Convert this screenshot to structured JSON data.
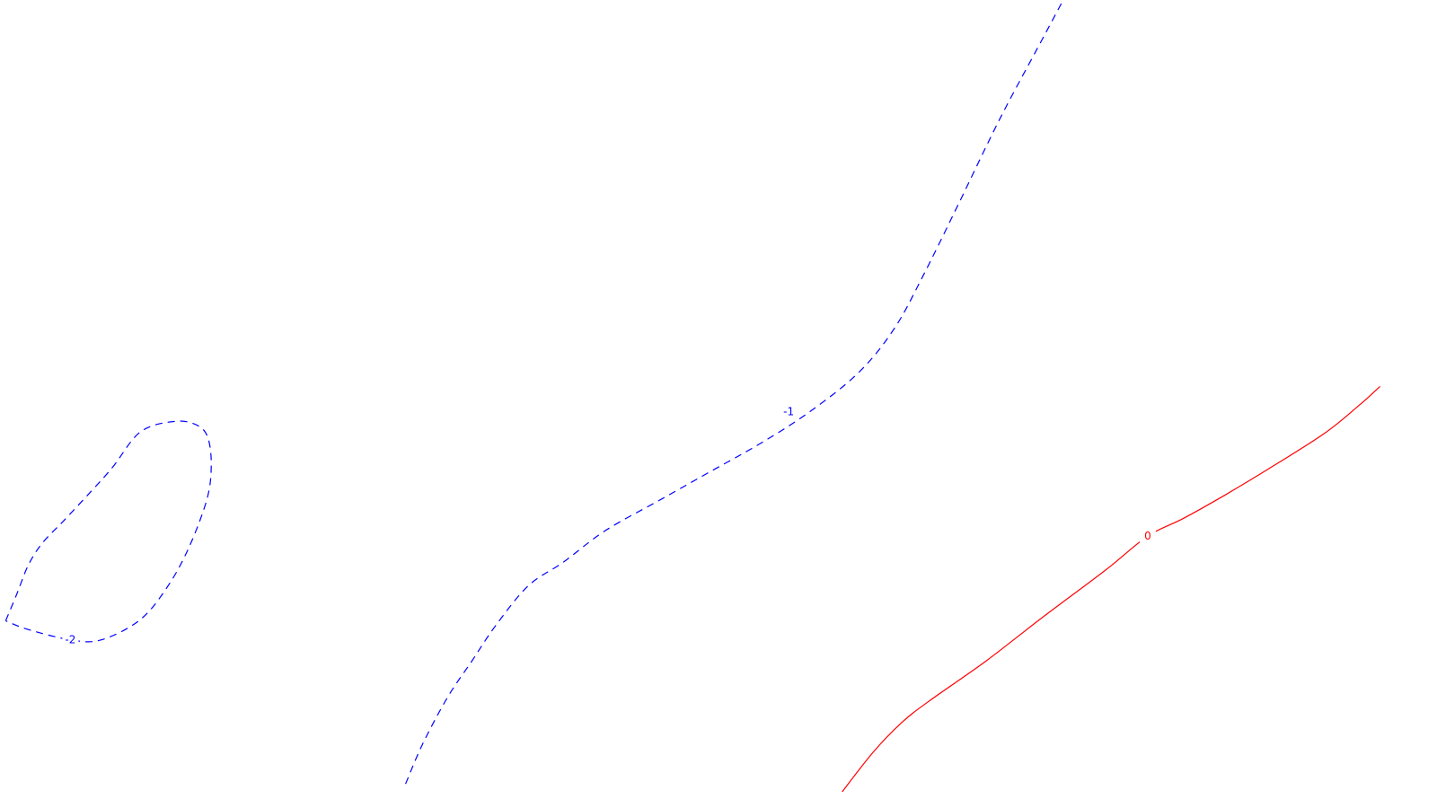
{
  "chart_data": {
    "type": "contour",
    "series": [
      {
        "level": -2,
        "label": "-2",
        "color": "#0000ff",
        "style": "dashed",
        "closed": true,
        "points": [
          [
            0.004,
            0.216
          ],
          [
            0.012,
            0.25
          ],
          [
            0.02,
            0.286
          ],
          [
            0.03,
            0.314
          ],
          [
            0.045,
            0.342
          ],
          [
            0.065,
            0.38
          ],
          [
            0.08,
            0.41
          ],
          [
            0.1,
            0.455
          ],
          [
            0.125,
            0.468
          ],
          [
            0.141,
            0.462
          ],
          [
            0.148,
            0.445
          ],
          [
            0.15,
            0.41
          ],
          [
            0.147,
            0.37
          ],
          [
            0.135,
            0.312
          ],
          [
            0.12,
            0.262
          ],
          [
            0.1,
            0.218
          ],
          [
            0.072,
            0.192
          ],
          [
            0.05,
            0.192
          ],
          [
            0.02,
            0.205
          ],
          [
            0.004,
            0.216
          ]
        ]
      },
      {
        "level": -1,
        "label": "-1",
        "color": "#0000ff",
        "style": "dashed",
        "closed": false,
        "points": [
          [
            0.288,
            0.01
          ],
          [
            0.3,
            0.06
          ],
          [
            0.318,
            0.12
          ],
          [
            0.335,
            0.165
          ],
          [
            0.352,
            0.21
          ],
          [
            0.375,
            0.26
          ],
          [
            0.4,
            0.29
          ],
          [
            0.43,
            0.33
          ],
          [
            0.47,
            0.37
          ],
          [
            0.505,
            0.405
          ],
          [
            0.54,
            0.44
          ],
          [
            0.575,
            0.48
          ],
          [
            0.61,
            0.53
          ],
          [
            0.635,
            0.585
          ],
          [
            0.655,
            0.65
          ],
          [
            0.68,
            0.74
          ],
          [
            0.71,
            0.85
          ],
          [
            0.74,
            0.95
          ],
          [
            0.755,
            1.0
          ]
        ]
      },
      {
        "level": 0,
        "label": "0",
        "color": "#ff0000",
        "style": "solid",
        "closed": false,
        "points": [
          [
            0.598,
            0.0
          ],
          [
            0.62,
            0.05
          ],
          [
            0.64,
            0.087
          ],
          [
            0.66,
            0.115
          ],
          [
            0.7,
            0.165
          ],
          [
            0.74,
            0.22
          ],
          [
            0.785,
            0.28
          ],
          [
            0.815,
            0.323
          ],
          [
            0.84,
            0.345
          ],
          [
            0.87,
            0.375
          ],
          [
            0.9,
            0.407
          ],
          [
            0.94,
            0.452
          ],
          [
            0.965,
            0.488
          ],
          [
            0.98,
            0.512
          ]
        ]
      }
    ],
    "contour_labels": [
      {
        "text": "-2",
        "level": -2,
        "x": 0.05,
        "y": 0.192
      },
      {
        "text": "-1",
        "level": -1,
        "x": 0.56,
        "y": 0.48
      },
      {
        "text": "0",
        "level": 0,
        "x": 0.815,
        "y": 0.323
      }
    ],
    "xlim": [
      0,
      1
    ],
    "ylim": [
      0,
      1
    ],
    "title": "",
    "xlabel": "",
    "ylabel": "",
    "grid": false,
    "legend": "none"
  }
}
